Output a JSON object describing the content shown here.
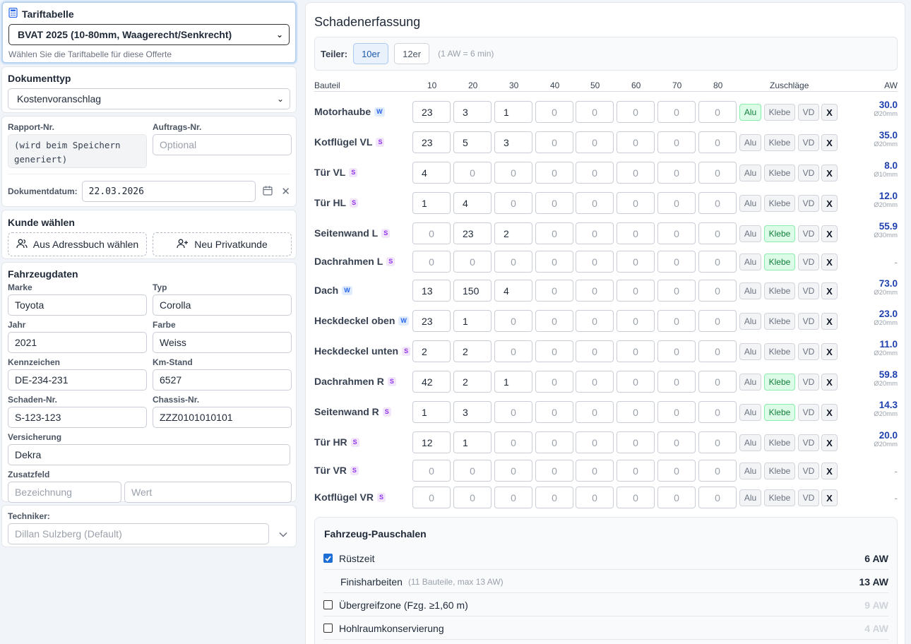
{
  "tariff": {
    "title": "Tariftabelle",
    "selected": "BVAT 2025 (10-80mm, Waagerecht/Senkrecht)",
    "hint": "Wählen Sie die Tariftabelle für diese Offerte"
  },
  "doctype": {
    "title": "Dokumenttyp",
    "selected": "Kostenvoranschlag"
  },
  "report": {
    "rapport_label": "Rapport-Nr.",
    "rapport_value": "(wird beim Speichern generiert)",
    "auftrag_label": "Auftrags-Nr.",
    "auftrag_placeholder": "Optional",
    "date_label": "Dokumentdatum:",
    "date_value": "22.03.2026"
  },
  "customer": {
    "title": "Kunde wählen",
    "btn_addressbook": "Aus Adressbuch wählen",
    "btn_new": "Neu Privatkunde"
  },
  "vehicle": {
    "title": "Fahrzeugdaten",
    "fields": [
      {
        "label": "Marke",
        "value": "Toyota"
      },
      {
        "label": "Typ",
        "value": "Corolla"
      },
      {
        "label": "Jahr",
        "value": "2021"
      },
      {
        "label": "Farbe",
        "value": "Weiss"
      },
      {
        "label": "Kennzeichen",
        "value": "DE-234-231"
      },
      {
        "label": "Km-Stand",
        "value": "6527"
      },
      {
        "label": "Schaden-Nr.",
        "value": "S-123-123"
      },
      {
        "label": "Chassis-Nr.",
        "value": "ZZZ0101010101"
      }
    ],
    "insurance_label": "Versicherung",
    "insurance_value": "Dekra",
    "extra_label": "Zusatzfeld",
    "extra_name_placeholder": "Bezeichnung",
    "extra_value_placeholder": "Wert"
  },
  "technician": {
    "label": "Techniker:",
    "selected": "Dillan Sulzberg (Default)"
  },
  "damage": {
    "title": "Schadenerfassung",
    "teiler_label": "Teiler:",
    "teiler_options": [
      "10er",
      "12er"
    ],
    "teiler_active": "10er",
    "teiler_note": "(1 AW = 6 min)",
    "columns": {
      "part": "Bauteil",
      "sizes": [
        "10",
        "20",
        "30",
        "40",
        "50",
        "60",
        "70",
        "80"
      ],
      "surcharges": "Zuschläge",
      "aw": "AW"
    },
    "surcharge_labels": [
      "Alu",
      "Klebe",
      "VD",
      "X"
    ],
    "rows": [
      {
        "name": "Motorhaube",
        "badge": "W",
        "values": [
          23,
          3,
          1,
          0,
          0,
          0,
          0,
          0
        ],
        "alu": true,
        "klebe": false,
        "aw": "30.0",
        "size": "Ø20mm"
      },
      {
        "name": "Kotflügel VL",
        "badge": "S",
        "values": [
          23,
          5,
          3,
          0,
          0,
          0,
          0,
          0
        ],
        "alu": false,
        "klebe": false,
        "aw": "35.0",
        "size": "Ø20mm"
      },
      {
        "name": "Tür VL",
        "badge": "S",
        "values": [
          4,
          0,
          0,
          0,
          0,
          0,
          0,
          0
        ],
        "alu": false,
        "klebe": false,
        "aw": "8.0",
        "size": "Ø10mm"
      },
      {
        "name": "Tür HL",
        "badge": "S",
        "values": [
          1,
          4,
          0,
          0,
          0,
          0,
          0,
          0
        ],
        "alu": false,
        "klebe": false,
        "aw": "12.0",
        "size": "Ø20mm"
      },
      {
        "name": "Seitenwand L",
        "badge": "S",
        "values": [
          0,
          23,
          2,
          0,
          0,
          0,
          0,
          0
        ],
        "alu": false,
        "klebe": true,
        "aw": "55.9",
        "size": "Ø30mm"
      },
      {
        "name": "Dachrahmen L",
        "badge": "S",
        "values": [
          0,
          0,
          0,
          0,
          0,
          0,
          0,
          0
        ],
        "alu": false,
        "klebe": true,
        "aw": "-",
        "size": ""
      },
      {
        "name": "Dach",
        "badge": "W",
        "values": [
          13,
          150,
          4,
          0,
          0,
          0,
          0,
          0
        ],
        "alu": false,
        "klebe": false,
        "aw": "73.0",
        "size": "Ø20mm"
      },
      {
        "name": "Heckdeckel oben",
        "badge": "W",
        "values": [
          23,
          1,
          0,
          0,
          0,
          0,
          0,
          0
        ],
        "alu": false,
        "klebe": false,
        "aw": "23.0",
        "size": "Ø20mm"
      },
      {
        "name": "Heckdeckel unten",
        "badge": "S",
        "values": [
          2,
          2,
          0,
          0,
          0,
          0,
          0,
          0
        ],
        "alu": false,
        "klebe": false,
        "aw": "11.0",
        "size": "Ø20mm"
      },
      {
        "name": "Dachrahmen R",
        "badge": "S",
        "values": [
          42,
          2,
          1,
          0,
          0,
          0,
          0,
          0
        ],
        "alu": false,
        "klebe": true,
        "aw": "59.8",
        "size": "Ø20mm"
      },
      {
        "name": "Seitenwand R",
        "badge": "S",
        "values": [
          1,
          3,
          0,
          0,
          0,
          0,
          0,
          0
        ],
        "alu": false,
        "klebe": true,
        "aw": "14.3",
        "size": "Ø20mm"
      },
      {
        "name": "Tür HR",
        "badge": "S",
        "values": [
          12,
          1,
          0,
          0,
          0,
          0,
          0,
          0
        ],
        "alu": false,
        "klebe": false,
        "aw": "20.0",
        "size": "Ø20mm"
      },
      {
        "name": "Tür VR",
        "badge": "S",
        "values": [
          0,
          0,
          0,
          0,
          0,
          0,
          0,
          0
        ],
        "alu": false,
        "klebe": false,
        "aw": "-",
        "size": ""
      },
      {
        "name": "Kotflügel VR",
        "badge": "S",
        "values": [
          0,
          0,
          0,
          0,
          0,
          0,
          0,
          0
        ],
        "alu": false,
        "klebe": false,
        "aw": "-",
        "size": ""
      }
    ]
  },
  "flatrates": {
    "title": "Fahrzeug-Pauschalen",
    "items": [
      {
        "label": "Rüstzeit",
        "note": "",
        "checkbox": true,
        "checked": true,
        "value": "6 AW",
        "dim": false
      },
      {
        "label": "Finisharbeiten",
        "note": "(11 Bauteile, max 13 AW)",
        "checkbox": false,
        "checked": false,
        "value": "13 AW",
        "dim": false
      },
      {
        "label": "Übergreifzone (Fzg. ≥1,60 m)",
        "note": "",
        "checkbox": true,
        "checked": false,
        "value": "9 AW",
        "dim": true
      },
      {
        "label": "Hohlraumkonservierung",
        "note": "",
        "checkbox": true,
        "checked": false,
        "value": "4 AW",
        "dim": true
      }
    ]
  }
}
